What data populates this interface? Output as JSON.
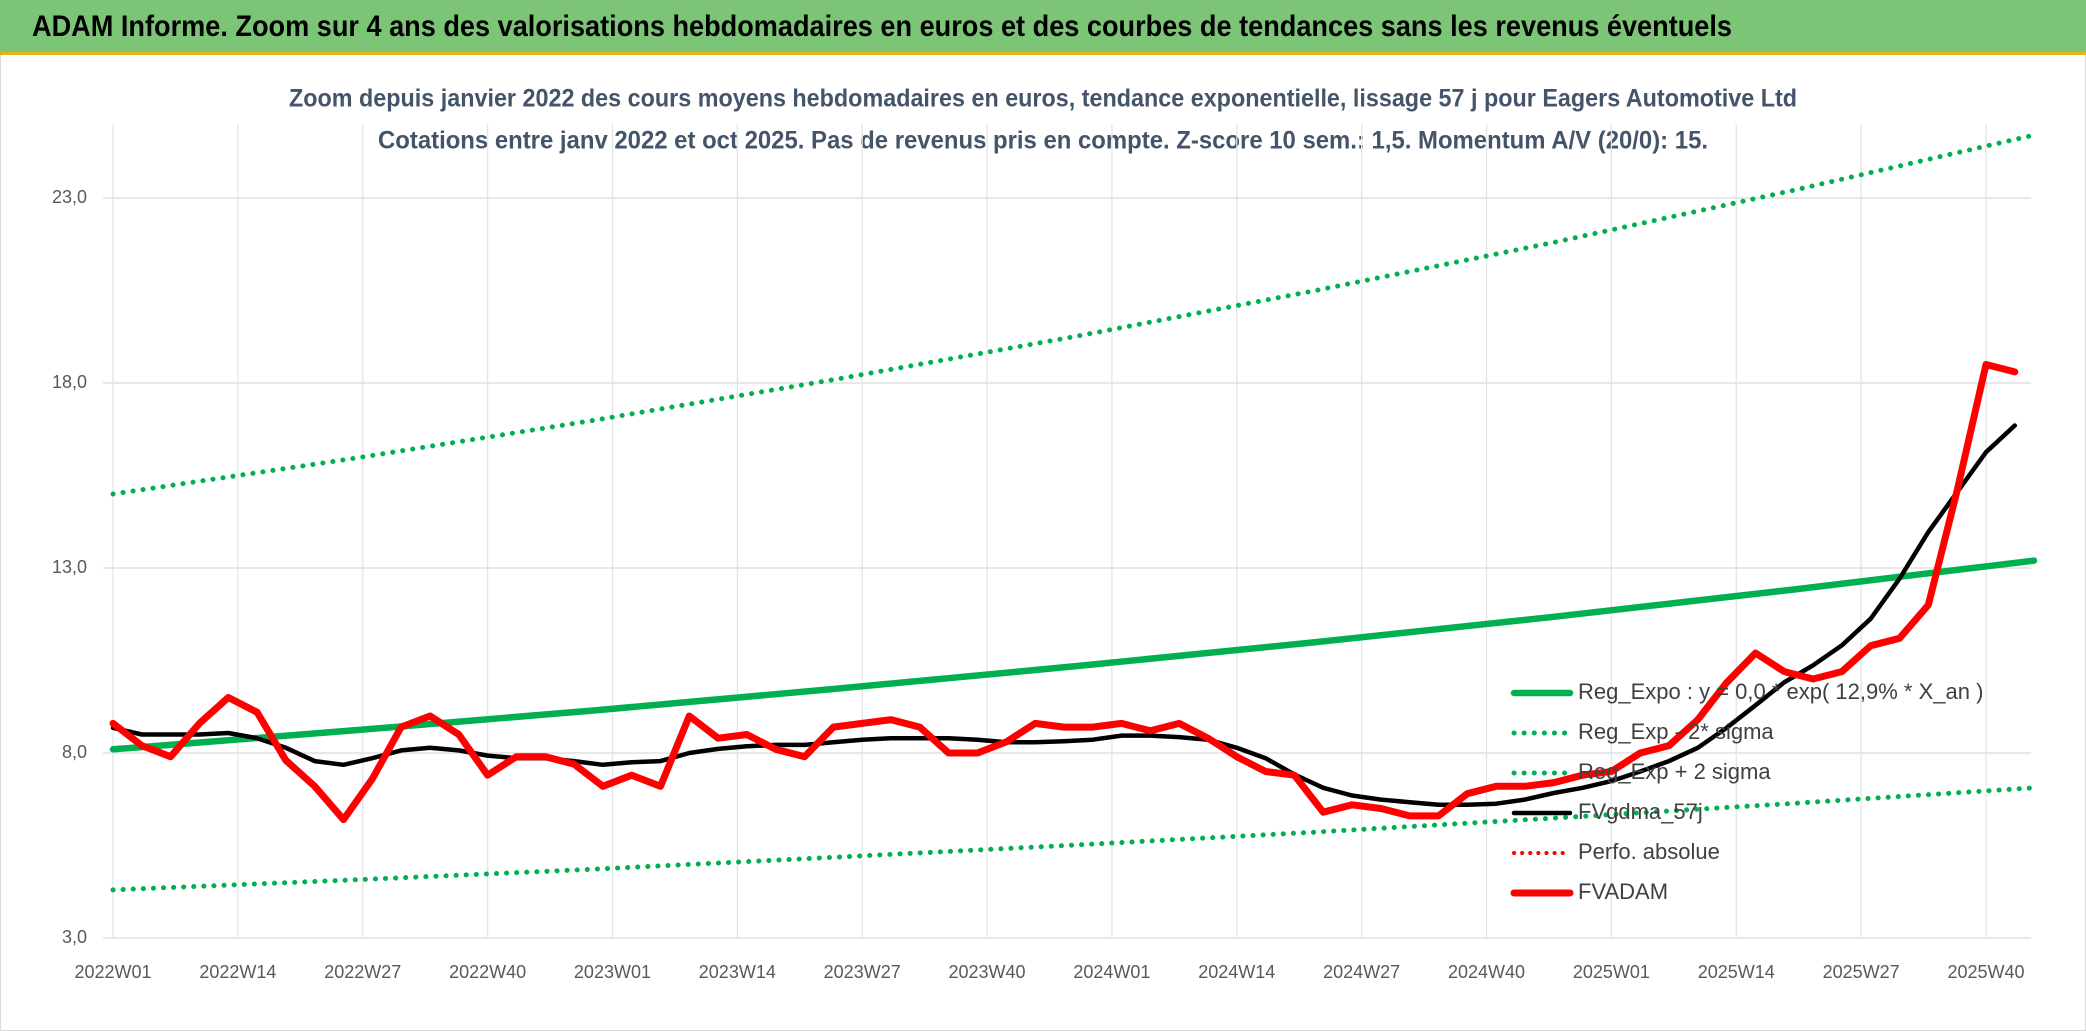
{
  "chart_data": {
    "type": "line",
    "banner": "ADAM Informe. Zoom sur 4 ans des valorisations hebdomadaires en euros et des courbes de tendances sans les revenus éventuels",
    "title": "Zoom depuis janvier 2022 des cours moyens hebdomadaires en euros, tendance exponentielle, lissage 57 j pour Eagers Automotive Ltd",
    "subtitle": "Cotations entre janv 2022 et oct 2025. Pas de revenus pris en compte. Z-score 10 sem.: 1,5. Momentum A/V (20/0): 15.",
    "x": [
      0,
      3,
      6,
      9,
      12,
      15,
      18,
      21,
      24,
      27,
      30,
      33,
      36,
      39,
      42,
      45,
      48,
      51,
      54,
      57,
      60,
      63,
      66,
      69,
      72,
      75,
      78,
      81,
      84,
      87,
      90,
      93,
      96,
      99,
      102,
      105,
      108,
      111,
      114,
      117,
      120,
      123,
      126,
      129,
      132,
      135,
      138,
      141,
      144,
      147,
      150,
      153,
      156,
      159,
      162,
      165,
      168,
      171,
      174,
      177,
      180,
      183,
      186,
      189,
      192,
      195,
      198
    ],
    "xlim": [
      0,
      200
    ],
    "xticks": [
      {
        "value": 0,
        "label": "2022W01"
      },
      {
        "value": 13,
        "label": "2022W14"
      },
      {
        "value": 26,
        "label": "2022W27"
      },
      {
        "value": 39,
        "label": "2022W40"
      },
      {
        "value": 52,
        "label": "2023W01"
      },
      {
        "value": 65,
        "label": "2023W14"
      },
      {
        "value": 78,
        "label": "2023W27"
      },
      {
        "value": 91,
        "label": "2023W40"
      },
      {
        "value": 104,
        "label": "2024W01"
      },
      {
        "value": 117,
        "label": "2024W14"
      },
      {
        "value": 130,
        "label": "2024W27"
      },
      {
        "value": 143,
        "label": "2024W40"
      },
      {
        "value": 156,
        "label": "2025W01"
      },
      {
        "value": 169,
        "label": "2025W14"
      },
      {
        "value": 182,
        "label": "2025W27"
      },
      {
        "value": 195,
        "label": "2025W40"
      }
    ],
    "ylim": [
      3,
      25
    ],
    "yticks": [
      {
        "value": 3,
        "label": "3,0"
      },
      {
        "value": 8,
        "label": "8,0"
      },
      {
        "value": 13,
        "label": "13,0"
      },
      {
        "value": 18,
        "label": "18,0"
      },
      {
        "value": 23,
        "label": "23,0"
      }
    ],
    "grid": true,
    "legend": "right",
    "series": [
      {
        "name": "Reg_Expo : y = 0,0 * exp( 12,9% *  X_an )",
        "color": "#00b050",
        "style": "solid",
        "width": 6.5,
        "x": [
          0,
          25,
          50,
          75,
          100,
          125,
          150,
          175,
          200
        ],
        "values": [
          8.1,
          8.61,
          9.15,
          9.73,
          10.34,
          10.99,
          11.68,
          12.42,
          13.2
        ]
      },
      {
        "name": "Reg_Exp - 2* sigma",
        "color": "#00b050",
        "style": "dotted",
        "width": 5,
        "x": [
          0,
          25,
          50,
          75,
          100,
          125,
          150,
          175,
          200
        ],
        "values": [
          4.3,
          4.57,
          4.86,
          5.18,
          5.51,
          5.86,
          6.24,
          6.64,
          7.06
        ]
      },
      {
        "name": "Reg_Exp + 2 sigma",
        "color": "#00b050",
        "style": "dotted",
        "width": 5,
        "x": [
          0,
          25,
          50,
          75,
          100,
          125,
          150,
          175,
          200
        ],
        "values": [
          15,
          15.96,
          16.99,
          18.09,
          19.25,
          20.49,
          21.8,
          23.21,
          24.7
        ]
      },
      {
        "name": "FVgdma_57j",
        "color": "#000000",
        "style": "solid",
        "width": 4.5,
        "values": [
          8.68,
          8.5,
          8.5,
          8.5,
          8.54,
          8.4,
          8.14,
          7.78,
          7.68,
          7.86,
          8.07,
          8.14,
          8.07,
          7.93,
          7.86,
          7.86,
          7.78,
          7.68,
          7.75,
          7.78,
          8.0,
          8.11,
          8.18,
          8.22,
          8.22,
          8.29,
          8.36,
          8.4,
          8.4,
          8.4,
          8.36,
          8.29,
          8.29,
          8.32,
          8.36,
          8.47,
          8.47,
          8.43,
          8.36,
          8.14,
          7.86,
          7.42,
          7.06,
          6.85,
          6.74,
          6.67,
          6.6,
          6.6,
          6.63,
          6.74,
          6.92,
          7.06,
          7.24,
          7.5,
          7.78,
          8.14,
          8.68,
          9.29,
          9.91,
          10.37,
          10.91,
          11.63,
          12.71,
          13.97,
          15.05,
          16.13,
          16.85
        ]
      },
      {
        "name": "Perfo. absolue",
        "color": "#ff0000",
        "style": "dotted",
        "width": 4,
        "x": [],
        "values": []
      },
      {
        "name": "FVADAM",
        "color": "#ff0000",
        "style": "solid",
        "width": 7,
        "values": [
          8.8,
          8.2,
          7.9,
          8.8,
          9.5,
          9.1,
          7.8,
          7.1,
          6.2,
          7.3,
          8.7,
          9.0,
          8.5,
          7.4,
          7.9,
          7.9,
          7.7,
          7.1,
          7.4,
          7.1,
          9.0,
          8.4,
          8.5,
          8.1,
          7.9,
          8.7,
          8.8,
          8.9,
          8.7,
          8.0,
          8.0,
          8.3,
          8.8,
          8.7,
          8.7,
          8.8,
          8.6,
          8.8,
          8.4,
          7.9,
          7.5,
          7.4,
          6.4,
          6.6,
          6.5,
          6.3,
          6.3,
          6.9,
          7.1,
          7.1,
          7.2,
          7.4,
          7.5,
          8.0,
          8.2,
          8.9,
          9.9,
          10.7,
          10.2,
          10.0,
          10.2,
          10.9,
          11.1,
          12.0,
          15.1,
          18.5,
          18.3
        ]
      }
    ]
  }
}
